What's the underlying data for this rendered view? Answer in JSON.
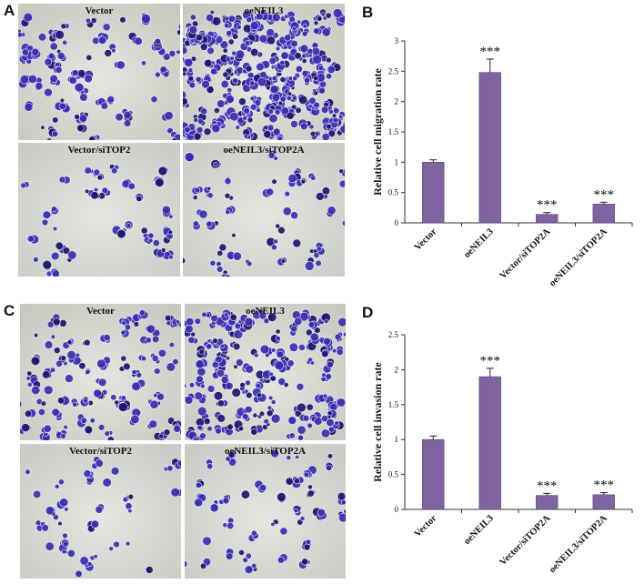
{
  "panels": {
    "A": {
      "letter": "A",
      "images": [
        "Vector",
        "oeNEIL3",
        "Vector/siTOP2",
        "oeNEIL3/siTOP2A"
      ]
    },
    "B": {
      "letter": "B"
    },
    "C": {
      "letter": "C",
      "images": [
        "Vector",
        "oeNEIL3",
        "Vector/siTOP2",
        "oeNEIL3/siTOP2A"
      ]
    },
    "D": {
      "letter": "D"
    }
  },
  "colors": {
    "bar": "#8064a2",
    "bar_edge": "#5b4681",
    "stain": "#3a2db5",
    "stain_dark": "#1e1570",
    "field_dense": "#c7c9c0",
    "field_sparse": "#c9ccc6"
  },
  "chart_data": [
    {
      "panel": "B",
      "type": "bar",
      "title": "",
      "xlabel": "",
      "ylabel": "Relative cell migration rate",
      "categories": [
        "Vector",
        "oeNEIL3",
        "Vector/siTOP2A",
        "oeNEIL3/siTOP2A"
      ],
      "values": [
        1.0,
        2.48,
        0.14,
        0.31
      ],
      "errors": [
        0.04,
        0.22,
        0.03,
        0.03
      ],
      "annotations": [
        "",
        "***",
        "***",
        "***"
      ],
      "ylim": [
        0,
        3
      ],
      "yticks": [
        "0",
        "0.5",
        "1",
        "1.5",
        "2",
        "2.5",
        "3"
      ]
    },
    {
      "panel": "D",
      "type": "bar",
      "title": "",
      "xlabel": "",
      "ylabel": "Relative cell invasion rate",
      "categories": [
        "Vector",
        "oeNEIL3",
        "Vector/siTOP2A",
        "oeNEIL3/siTOP2A"
      ],
      "values": [
        1.0,
        1.9,
        0.2,
        0.21
      ],
      "errors": [
        0.05,
        0.12,
        0.03,
        0.03
      ],
      "annotations": [
        "",
        "***",
        "***",
        "***"
      ],
      "ylim": [
        0,
        2.5
      ],
      "yticks": [
        "0",
        "0.5",
        "1",
        "1.5",
        "2",
        "2.5"
      ]
    }
  ]
}
